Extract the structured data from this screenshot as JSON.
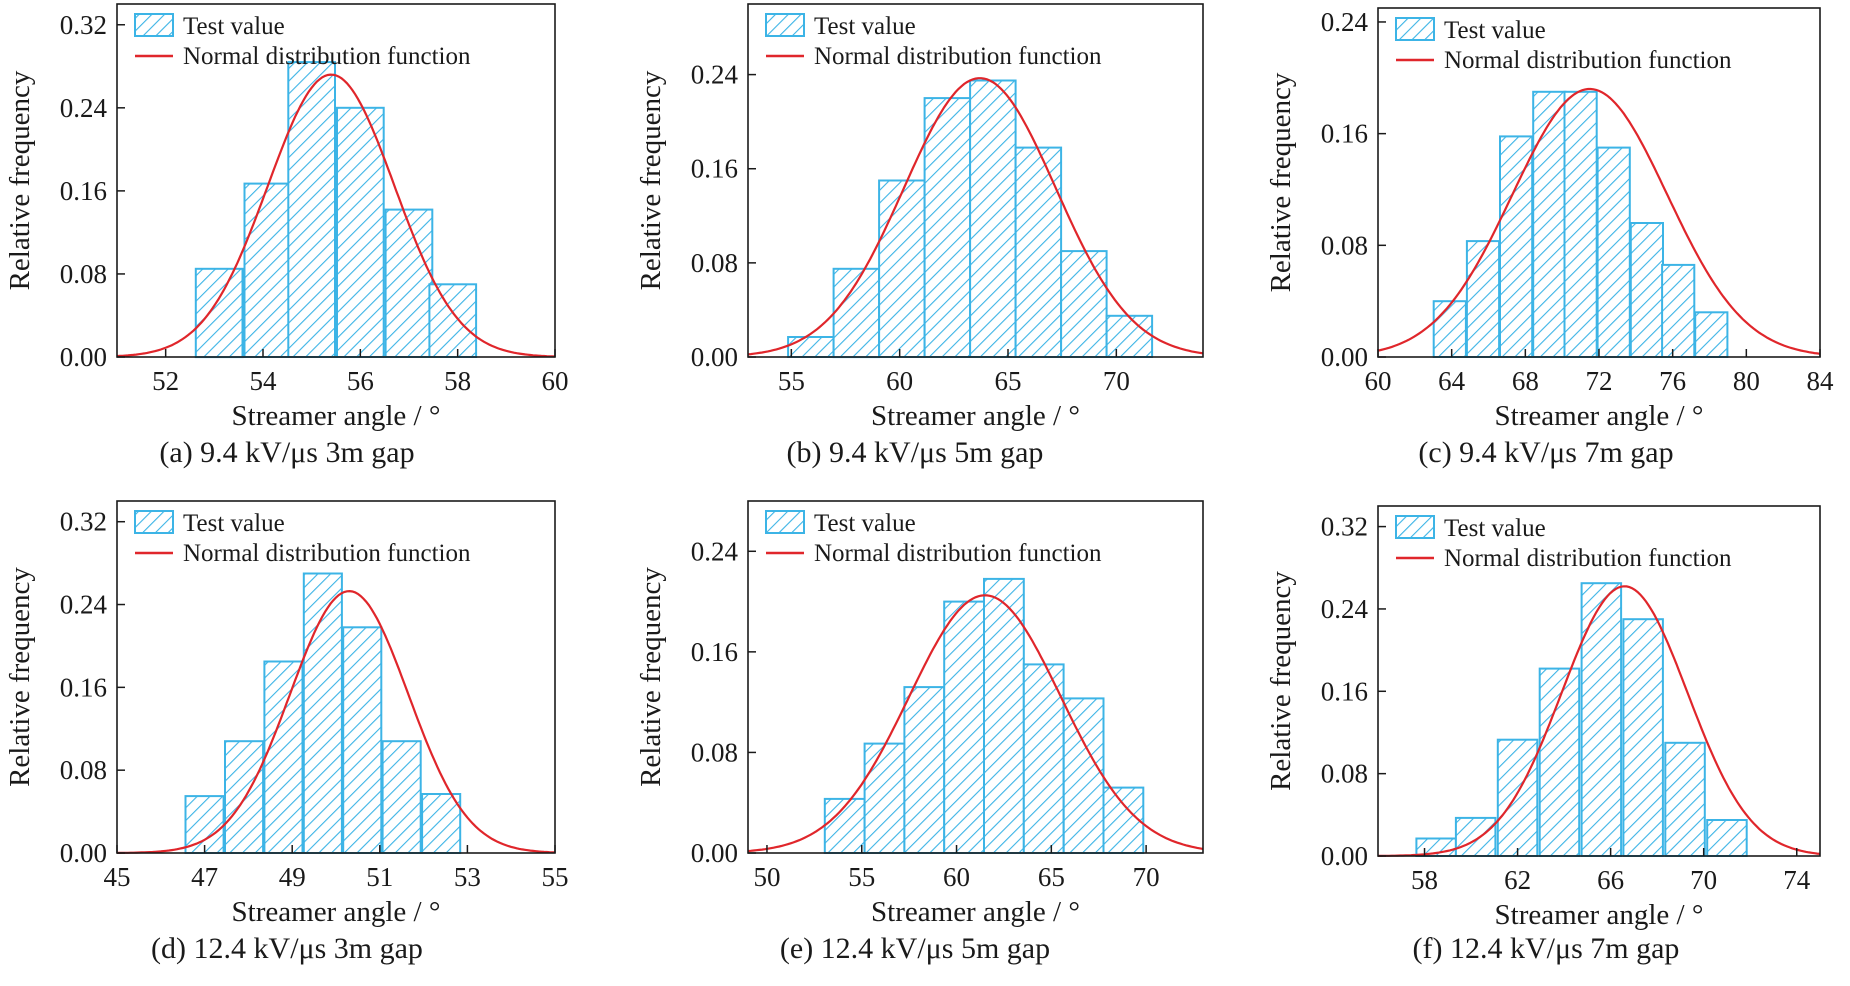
{
  "colors": {
    "bar_stroke": "#3cb4e6",
    "bar_fill": "#ffffff",
    "hatch": "#3cb4e6",
    "curve": "#e0262b",
    "axis": "#1a1a1a"
  },
  "chart_data": [
    {
      "type": "bar",
      "caption": "(a) 9.4 kV/μs  3m gap",
      "xlabel": "Streamer angle / °",
      "ylabel": "Relative frequency",
      "xlim": [
        51,
        60
      ],
      "ylim": [
        0,
        0.34
      ],
      "xticks": [
        52,
        54,
        56,
        58,
        60
      ],
      "xtick_labels": [
        "52",
        "54",
        "56",
        "58",
        "60"
      ],
      "yticks": [
        0,
        0.08,
        0.16,
        0.24,
        0.32
      ],
      "ytick_labels": [
        "0.00",
        "0.08",
        "0.16",
        "0.24",
        "0.32"
      ],
      "bin_width": 0.96,
      "categories": [
        53.1,
        54.1,
        55.0,
        56.0,
        57.0,
        57.9
      ],
      "values": [
        0.085,
        0.167,
        0.284,
        0.24,
        0.142,
        0.07
      ],
      "legend": [
        "Test value",
        "Normal distribution function"
      ],
      "curve": {
        "mean": 55.4,
        "sd": 1.3,
        "peak": 0.272
      }
    },
    {
      "type": "bar",
      "caption": "(b) 9.4 kV/μs  5m gap",
      "xlabel": "Streamer angle / °",
      "ylabel": "Relative frequency",
      "xlim": [
        53,
        74
      ],
      "ylim": [
        0,
        0.3
      ],
      "xticks": [
        55,
        60,
        65,
        70
      ],
      "xtick_labels": [
        "55",
        "60",
        "65",
        "70"
      ],
      "yticks": [
        0,
        0.08,
        0.16,
        0.24
      ],
      "ytick_labels": [
        "0.00",
        "0.08",
        "0.16",
        "0.24"
      ],
      "bin_width": 2.1,
      "categories": [
        55.9,
        58.0,
        60.1,
        62.2,
        64.3,
        66.4,
        68.5,
        70.6
      ],
      "values": [
        0.017,
        0.075,
        0.15,
        0.22,
        0.235,
        0.178,
        0.09,
        0.035
      ],
      "legend": [
        "Test value",
        "Normal distribution function"
      ],
      "curve": {
        "mean": 63.7,
        "sd": 3.5,
        "peak": 0.237
      }
    },
    {
      "type": "bar",
      "caption": "(c) 9.4 kV/μs  7m gap",
      "xlabel": "Streamer angle / °",
      "ylabel": "Relative frequency",
      "xlim": [
        60,
        84
      ],
      "ylim": [
        0,
        0.25
      ],
      "xticks": [
        60,
        64,
        68,
        72,
        76,
        80,
        84
      ],
      "xtick_labels": [
        "60",
        "64",
        "68",
        "72",
        "76",
        "80",
        "84"
      ],
      "yticks": [
        0,
        0.08,
        0.16,
        0.24
      ],
      "ytick_labels": [
        "0.00",
        "0.08",
        "0.16",
        "0.24"
      ],
      "bin_width": 1.75,
      "categories": [
        63.9,
        65.7,
        67.5,
        69.3,
        71.0,
        72.8,
        74.6,
        76.3,
        78.1,
        79.9
      ],
      "values": [
        0.04,
        0.083,
        0.158,
        0.19,
        0.19,
        0.15,
        0.096,
        0.066,
        0.032,
        0.0
      ],
      "legend": [
        "Test value",
        "Normal distribution function"
      ],
      "curve": {
        "mean": 71.5,
        "sd": 4.2,
        "peak": 0.192
      }
    },
    {
      "type": "bar",
      "caption": "(d) 12.4 kV/μs  3m gap",
      "xlabel": "Streamer angle / °",
      "ylabel": "Relative frequency",
      "xlim": [
        45,
        55
      ],
      "ylim": [
        0,
        0.34
      ],
      "xticks": [
        45,
        47,
        49,
        51,
        53,
        55
      ],
      "xtick_labels": [
        "45",
        "47",
        "49",
        "51",
        "53",
        "55"
      ],
      "yticks": [
        0,
        0.08,
        0.16,
        0.24,
        0.32
      ],
      "ytick_labels": [
        "0.00",
        "0.08",
        "0.16",
        "0.24",
        "0.32"
      ],
      "bin_width": 0.87,
      "categories": [
        47.0,
        47.9,
        48.8,
        49.7,
        50.6,
        51.5,
        52.4,
        53.3
      ],
      "values": [
        0.055,
        0.108,
        0.185,
        0.27,
        0.218,
        0.108,
        0.057,
        0.0
      ],
      "legend": [
        "Test value",
        "Normal distribution function"
      ],
      "curve": {
        "mean": 50.3,
        "sd": 1.35,
        "peak": 0.253
      }
    },
    {
      "type": "bar",
      "caption": "(e) 12.4 kV/μs  5m gap",
      "xlabel": "Streamer angle / °",
      "ylabel": "Relative frequency",
      "xlim": [
        49,
        73
      ],
      "ylim": [
        0,
        0.28
      ],
      "xticks": [
        50,
        55,
        60,
        65,
        70
      ],
      "xtick_labels": [
        "50",
        "55",
        "60",
        "65",
        "70"
      ],
      "yticks": [
        0,
        0.08,
        0.16,
        0.24
      ],
      "ytick_labels": [
        "0.00",
        "0.08",
        "0.16",
        "0.24"
      ],
      "bin_width": 2.1,
      "categories": [
        54.1,
        56.2,
        58.3,
        60.4,
        62.5,
        64.6,
        66.7,
        68.8
      ],
      "values": [
        0.043,
        0.087,
        0.132,
        0.2,
        0.218,
        0.15,
        0.123,
        0.052
      ],
      "legend": [
        "Test value",
        "Normal distribution function"
      ],
      "curve": {
        "mean": 61.5,
        "sd": 4.0,
        "peak": 0.205
      }
    },
    {
      "type": "bar",
      "caption": "(f) 12.4 kV/μs  7m gap",
      "xlabel": "Streamer angle / °",
      "ylabel": "Relative frequency",
      "xlim": [
        56,
        75
      ],
      "ylim": [
        0,
        0.34
      ],
      "xticks": [
        58,
        62,
        66,
        70,
        74
      ],
      "xtick_labels": [
        "58",
        "62",
        "66",
        "70",
        "74"
      ],
      "yticks": [
        0,
        0.08,
        0.16,
        0.24,
        0.32
      ],
      "ytick_labels": [
        "0.00",
        "0.08",
        "0.16",
        "0.24",
        "0.32"
      ],
      "bin_width": 1.7,
      "categories": [
        58.5,
        60.2,
        62.0,
        63.8,
        65.6,
        67.4,
        69.2,
        71.0,
        72.8
      ],
      "values": [
        0.017,
        0.037,
        0.113,
        0.182,
        0.265,
        0.23,
        0.11,
        0.035,
        0.0
      ],
      "legend": [
        "Test value",
        "Normal distribution function"
      ],
      "curve": {
        "mean": 66.6,
        "sd": 2.7,
        "peak": 0.262
      }
    }
  ]
}
